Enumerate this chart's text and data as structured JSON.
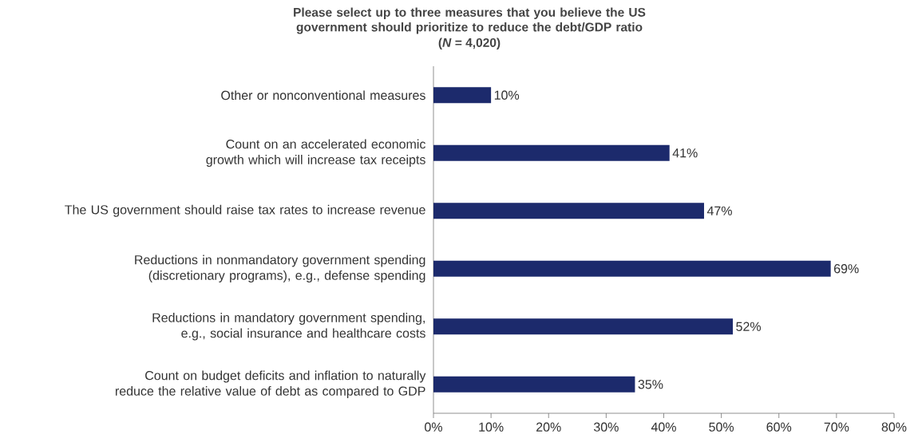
{
  "chart_data": {
    "type": "bar",
    "orientation": "horizontal",
    "title": "Please select up to three measures that you believe the US government should prioritize to reduce the debt/GDP ratio",
    "subtitle": "(*N* = 4,020)",
    "categories": [
      "Other or nonconventional measures",
      "Count on an accelerated economic growth which will increase tax receipts",
      "The US government should raise tax rates to increase revenue",
      "Reductions in nonmandatory government spending (discretionary programs), e.g., defense spending",
      "Reductions in mandatory government spending, e.g., social insurance and healthcare costs",
      "Count on budget deficits and inflation to naturally reduce the relative value of debt as compared to GDP"
    ],
    "values": [
      10,
      41,
      47,
      69,
      52,
      35
    ],
    "value_labels": [
      "10%",
      "41%",
      "47%",
      "69%",
      "52%",
      "35%"
    ],
    "color": "#1c2a6c",
    "xlim": [
      0,
      80
    ],
    "xticks": [
      {
        "value": 0,
        "label": "0%"
      },
      {
        "value": 10,
        "label": "10%"
      },
      {
        "value": 20,
        "label": "20%"
      },
      {
        "value": 30,
        "label": "30%"
      },
      {
        "value": 40,
        "label": "40%"
      },
      {
        "value": 50,
        "label": "50%"
      },
      {
        "value": 60,
        "label": "60%"
      },
      {
        "value": 70,
        "label": "70%"
      },
      {
        "value": 80,
        "label": "80%"
      }
    ]
  }
}
